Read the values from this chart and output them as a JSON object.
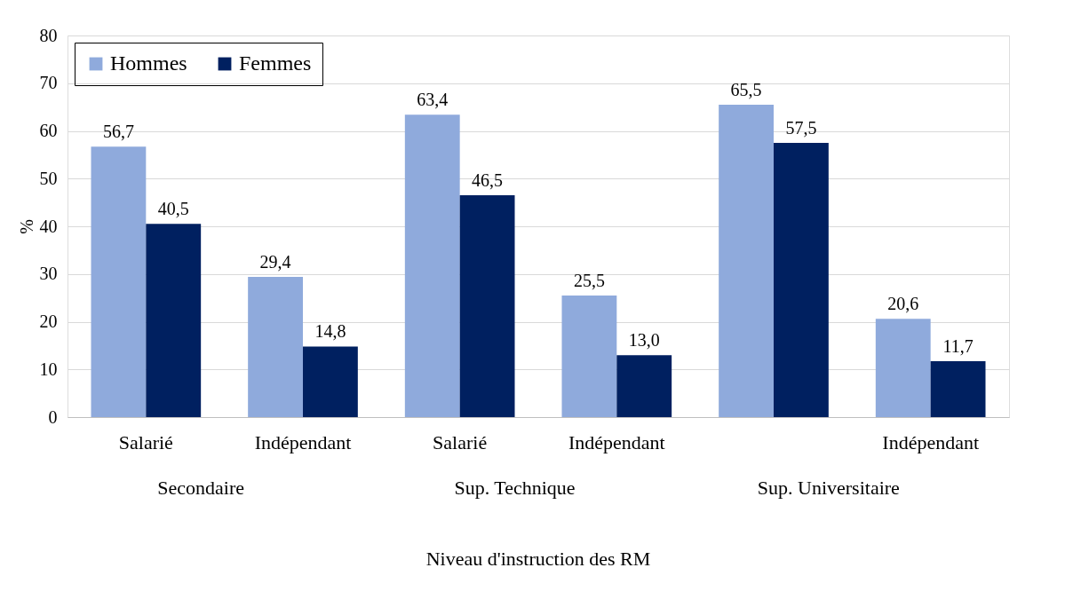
{
  "chart_data": {
    "type": "bar",
    "ylabel": "%",
    "xlabel": "Niveau d'instruction des RM",
    "categories": [
      "Salarié",
      "Indépendant",
      "Salarié",
      "Indépendant",
      null,
      "Indépendant"
    ],
    "series": [
      {
        "name": "Hommes",
        "color": "#8faadc",
        "values": [
          56.7,
          29.4,
          63.4,
          25.5,
          65.5,
          20.6
        ],
        "value_labels": [
          "56,7",
          "29,4",
          "63,4",
          "25,5",
          "65,5",
          "20,6"
        ]
      },
      {
        "name": "Femmes",
        "color": "#002060",
        "values": [
          40.5,
          14.8,
          46.5,
          13.0,
          57.5,
          11.7
        ],
        "value_labels": [
          "40,5",
          "14,8",
          "46,5",
          "13,0",
          "57,5",
          "11,7"
        ]
      }
    ],
    "annotations": [
      "Secondaire",
      "Sup. Technique",
      "Sup. Universitaire"
    ],
    "ylim": [
      0,
      80
    ],
    "yticks": [
      0,
      10,
      20,
      30,
      40,
      50,
      60,
      70,
      80
    ],
    "grid": "y",
    "legend": "top left"
  }
}
